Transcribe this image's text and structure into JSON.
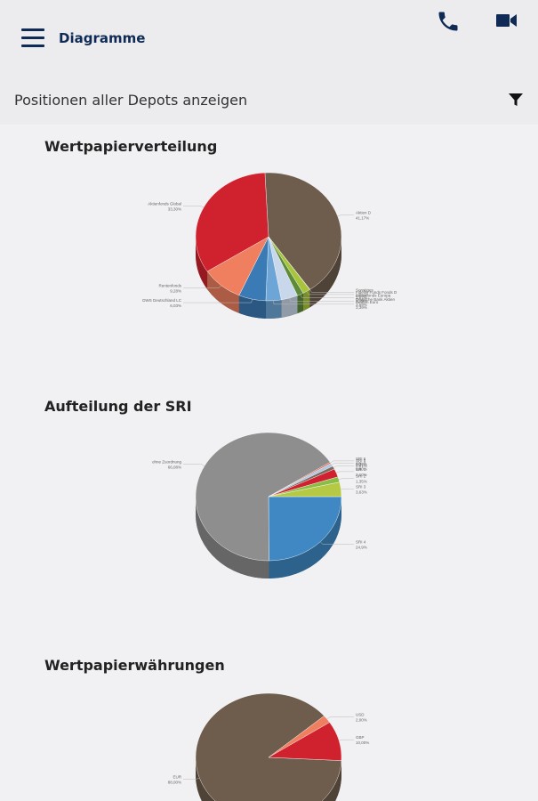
{
  "appbar": {
    "title": "Diagramme",
    "menu_icon": "hamburger-menu-icon",
    "phone_icon": "phone-icon",
    "video_icon": "video-camera-icon",
    "accent_color": "#0e2a55"
  },
  "filterbar": {
    "text": "Positionen aller Depots anzeigen",
    "filter_icon": "filter-funnel-icon"
  },
  "charts": {
    "wertpapier_title": "Wertpapierverteilung",
    "sri_title": "Aufteilung der SRI",
    "waehrung_title": "Wertpapierwährungen"
  },
  "chart_data": [
    {
      "type": "pie",
      "title": "Wertpapierverteilung",
      "slices": [
        {
          "label": "Aktien D",
          "value": 41.17,
          "color": "#6e5c4d",
          "value_text": "41,17%"
        },
        {
          "label": "Sonstiges",
          "value": 0.08,
          "color": "#9b9b9b",
          "value_text": "0,08%"
        },
        {
          "label": "Fidelity Funds Fonds D",
          "value": 1.67,
          "color": "#a8c43c",
          "value_text": "1,67%"
        },
        {
          "label": "Aktienfonds Europa",
          "value": 1.39,
          "color": "#5e8b3a",
          "value_text": "1,39%"
        },
        {
          "label": "Deutsche Bank Aktien",
          "value": 3.69,
          "color": "#c9d7ea",
          "value_text": "3,69%"
        },
        {
          "label": "Renten Euro",
          "value": 3.39,
          "color": "#6da5d6",
          "value_text": "3,39%"
        },
        {
          "label": "DWS Deutschland LC",
          "value": 6.03,
          "color": "#3a7ab5",
          "value_text": "6,03%"
        },
        {
          "label": "Rentenfonds",
          "value": 9.28,
          "color": "#ef7f5e",
          "value_text": "9,28%"
        },
        {
          "label": "Aktienfonds Global",
          "value": 33.3,
          "color": "#d0222e",
          "value_text": "33,30%"
        }
      ]
    },
    {
      "type": "pie",
      "title": "Aufteilung der SRI",
      "slices": [
        {
          "label": "SRI 4",
          "value": 24.9,
          "color": "#3f88c4",
          "value_text": "24,9%"
        },
        {
          "label": "ohne Zuordnung",
          "value": 66.08,
          "color": "#8e8e8e",
          "value_text": "66,08%"
        },
        {
          "label": "SRI 6",
          "value": 0.33,
          "color": "#e05a3b",
          "value_text": "0,33%"
        },
        {
          "label": "SRI 5",
          "value": 0.81,
          "color": "#b0c8e4",
          "value_text": "0,81%"
        },
        {
          "label": "SRI 7",
          "value": 0.8,
          "color": "#7a6a5c",
          "value_text": "0,80%"
        },
        {
          "label": "SRI 1",
          "value": 2.1,
          "color": "#cf2130",
          "value_text": "2,10%"
        },
        {
          "label": "SRI 2",
          "value": 1.35,
          "color": "#88bd46",
          "value_text": "1,35%"
        },
        {
          "label": "SRI 3",
          "value": 3.63,
          "color": "#b5c944",
          "value_text": "3,63%"
        }
      ]
    },
    {
      "type": "pie",
      "title": "Wertpapierwährungen",
      "slices": [
        {
          "label": "EUR",
          "value": 88.0,
          "color": "#6e5c4d",
          "value_text": "88,00%"
        },
        {
          "label": "USD",
          "value": 2.0,
          "color": "#ef7f5e",
          "value_text": "2,00%"
        },
        {
          "label": "GBP",
          "value": 10.0,
          "color": "#d0222e",
          "value_text": "10,00%"
        }
      ]
    }
  ]
}
